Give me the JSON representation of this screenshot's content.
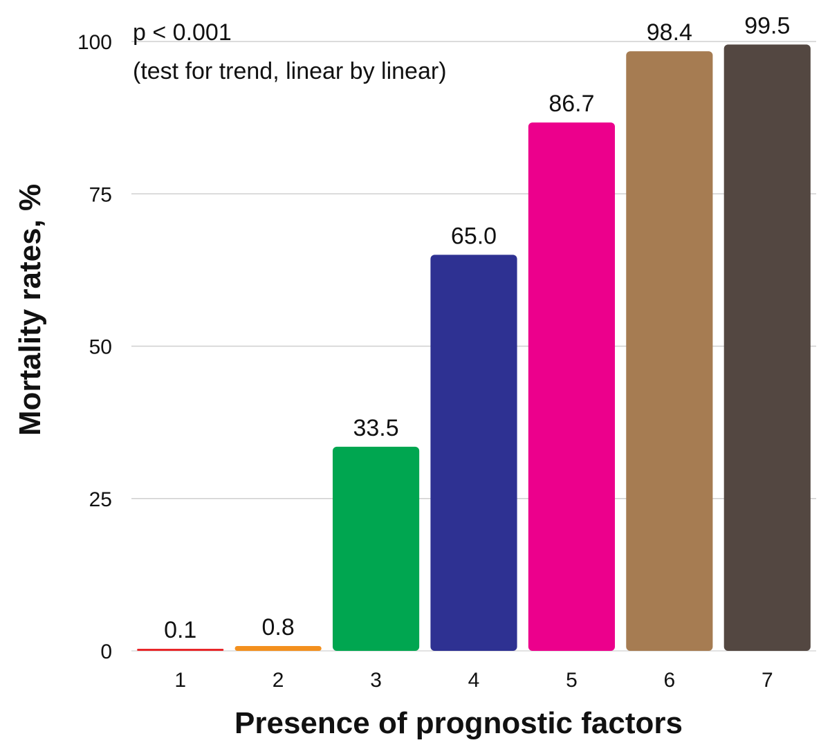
{
  "chart_data": {
    "type": "bar",
    "title": "",
    "xlabel": "Presence of prognostic factors",
    "ylabel": "Mortality rates, %",
    "categories": [
      "1",
      "2",
      "3",
      "4",
      "5",
      "6",
      "7"
    ],
    "values": [
      0.1,
      0.8,
      33.5,
      65.0,
      86.7,
      98.4,
      99.5
    ],
    "value_labels": [
      "0.1",
      "0.8",
      "33.5",
      "65.0",
      "86.7",
      "98.4",
      "99.5"
    ],
    "colors": [
      "#e8262a",
      "#f3901e",
      "#00a650",
      "#2e3192",
      "#ec008c",
      "#a67c52",
      "#534741"
    ],
    "ylim": [
      0,
      100
    ],
    "yticks": [
      0,
      25,
      50,
      75,
      100
    ],
    "grid": true,
    "legend": "none",
    "annotations": [
      "p < 0.001",
      "(test for trend, linear by linear)"
    ]
  }
}
